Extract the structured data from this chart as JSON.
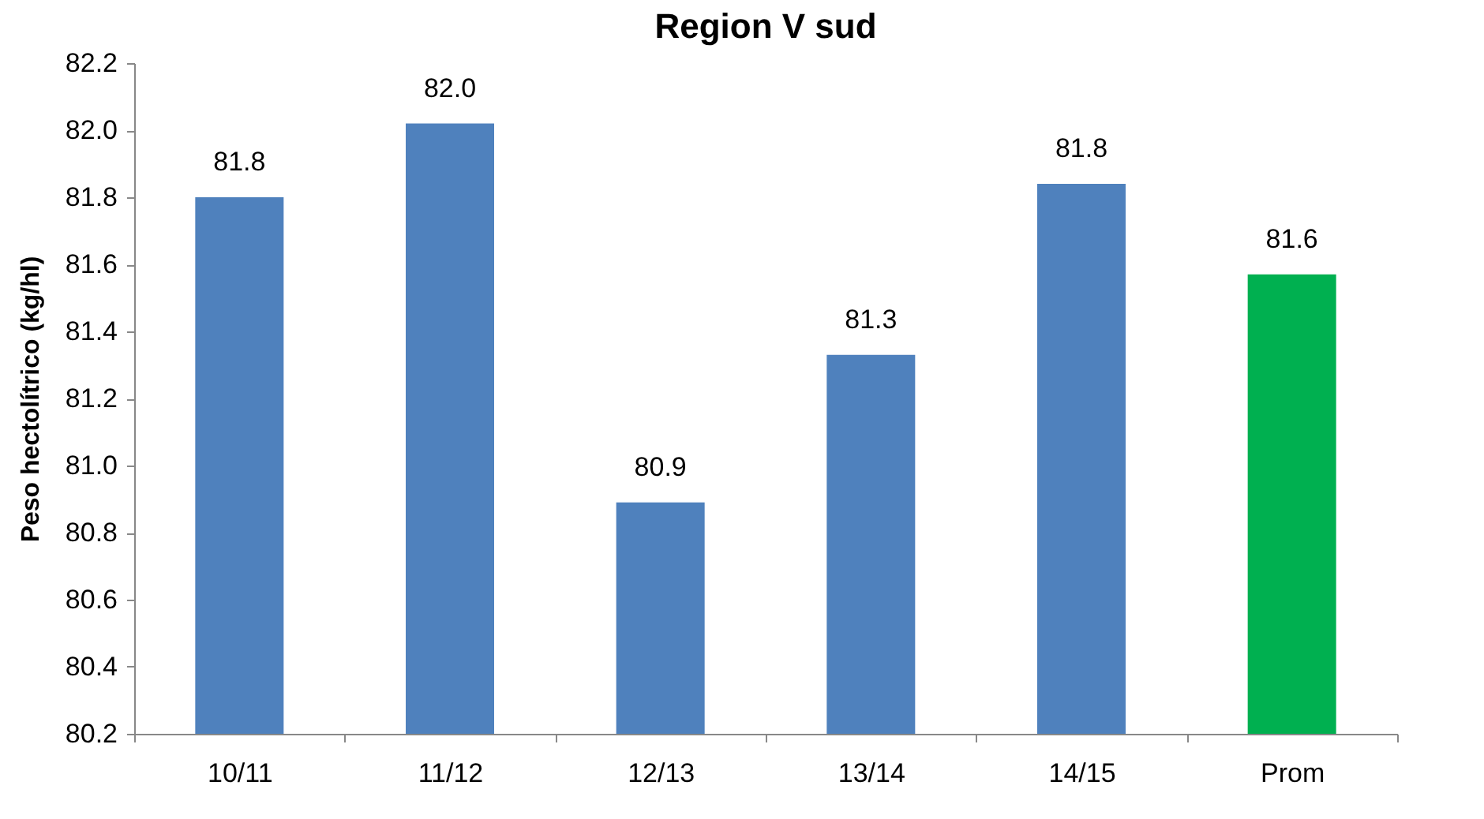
{
  "chart_data": {
    "type": "bar",
    "title": "Region V sud",
    "ylabel": "Peso hectolítrico (kg/hl)",
    "categories": [
      "10/11",
      "11/12",
      "12/13",
      "13/14",
      "14/15",
      "Prom"
    ],
    "values": [
      81.8,
      82.02,
      80.89,
      81.33,
      81.84,
      81.57
    ],
    "colors": [
      "#4f81bd",
      "#4f81bd",
      "#4f81bd",
      "#4f81bd",
      "#4f81bd",
      "#00b050"
    ],
    "value_labels": [
      "81.8",
      "82.0",
      "80.9",
      "81.3",
      "81.8",
      "81.6"
    ],
    "ylim": [
      80.2,
      82.2
    ],
    "yticks": [
      {
        "value": 80.2,
        "label": "80.2"
      },
      {
        "value": 80.4,
        "label": "80.4"
      },
      {
        "value": 80.6,
        "label": "80.6"
      },
      {
        "value": 80.8,
        "label": "80.8"
      },
      {
        "value": 81,
        "label": "81.0"
      },
      {
        "value": 81.2,
        "label": "81.2"
      },
      {
        "value": 81.4,
        "label": "81.4"
      },
      {
        "value": 81.6,
        "label": "81.6"
      },
      {
        "value": 81.8,
        "label": "81.8"
      },
      {
        "value": 82,
        "label": "82.0"
      },
      {
        "value": 82.2,
        "label": "82.2"
      }
    ],
    "grid": false
  }
}
